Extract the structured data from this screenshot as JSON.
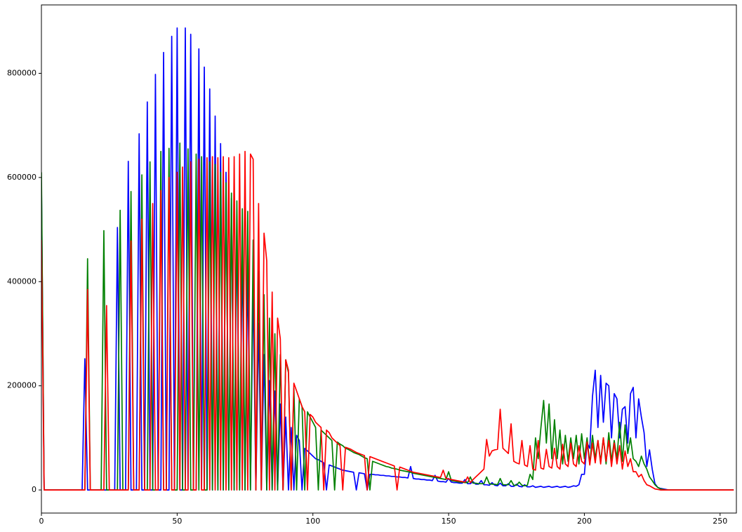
{
  "chart_data": {
    "type": "line",
    "xlim": [
      0,
      256
    ],
    "xticks": [
      0,
      50,
      100,
      150,
      200,
      250
    ],
    "ylim": [
      -44350,
      931350
    ],
    "yticks": [
      0,
      200000,
      400000,
      600000,
      800000
    ],
    "series": [
      {
        "color": "#0000ff",
        "values": [
          590000,
          0,
          0,
          0,
          0,
          0,
          0,
          0,
          0,
          0,
          0,
          0,
          0,
          0,
          0,
          0,
          252000,
          0,
          0,
          0,
          0,
          0,
          0,
          0,
          0,
          0,
          0,
          0,
          504000,
          0,
          0,
          0,
          631000,
          0,
          0,
          0,
          684000,
          0,
          0,
          745000,
          0,
          0,
          798000,
          0,
          0,
          840000,
          0,
          0,
          871000,
          0,
          887000,
          0,
          0,
          887000,
          0,
          875000,
          0,
          0,
          847000,
          0,
          812000,
          0,
          770000,
          0,
          718000,
          0,
          665000,
          0,
          610000,
          0,
          560000,
          0,
          510000,
          0,
          460000,
          0,
          430000,
          0,
          395000,
          0,
          320000,
          0,
          260000,
          0,
          210000,
          0,
          190000,
          0,
          165000,
          0,
          140000,
          0,
          120000,
          0,
          105000,
          95000,
          0,
          80000,
          75000,
          70000,
          65000,
          60000,
          58000,
          55000,
          52000,
          0,
          48000,
          46000,
          44000,
          42000,
          40000,
          38000,
          37000,
          36000,
          35000,
          34000,
          0,
          33000,
          32000,
          31000,
          0,
          30000,
          30000,
          29000,
          29000,
          28000,
          28000,
          27000,
          27000,
          26000,
          26000,
          25000,
          25000,
          24000,
          24000,
          23000,
          45000,
          22000,
          21000,
          21000,
          20000,
          20000,
          19000,
          19000,
          18000,
          28000,
          17000,
          16000,
          16000,
          15000,
          22000,
          15000,
          14000,
          14000,
          13000,
          13000,
          20000,
          12000,
          12000,
          16000,
          11000,
          11000,
          18000,
          10000,
          10000,
          9000,
          14000,
          9000,
          8000,
          13000,
          8000,
          8000,
          12000,
          7000,
          7000,
          11000,
          7000,
          6000,
          10000,
          6000,
          6000,
          8000,
          5000,
          6000,
          7000,
          5000,
          6000,
          7000,
          5000,
          6000,
          7000,
          5000,
          6000,
          7000,
          5000,
          6000,
          8000,
          7000,
          10000,
          30000,
          30000,
          90000,
          80000,
          180000,
          230000,
          120000,
          220000,
          130000,
          205000,
          200000,
          100000,
          185000,
          175000,
          100000,
          155000,
          160000,
          90000,
          185000,
          197000,
          100000,
          175000,
          140000,
          110000,
          45000,
          77000,
          40000,
          12000,
          5000,
          3000,
          2000,
          1000,
          0,
          0,
          0,
          0,
          0,
          0,
          0,
          0,
          0,
          0,
          0,
          0,
          0,
          0,
          0,
          0,
          0,
          0,
          0,
          0,
          0,
          0,
          0,
          0,
          0
        ]
      },
      {
        "color": "#008000",
        "values": [
          610000,
          0,
          0,
          0,
          0,
          0,
          0,
          0,
          0,
          0,
          0,
          0,
          0,
          0,
          0,
          0,
          0,
          444000,
          0,
          0,
          0,
          0,
          0,
          498000,
          0,
          0,
          0,
          0,
          0,
          537000,
          0,
          0,
          0,
          573000,
          0,
          0,
          0,
          605000,
          0,
          0,
          630000,
          0,
          0,
          0,
          650000,
          0,
          0,
          656000,
          0,
          0,
          0,
          666000,
          0,
          0,
          655000,
          0,
          0,
          645000,
          0,
          640000,
          0,
          0,
          630000,
          0,
          625000,
          0,
          610000,
          0,
          590000,
          0,
          570000,
          0,
          555000,
          0,
          540000,
          0,
          535000,
          0,
          480000,
          0,
          420000,
          0,
          375000,
          0,
          330000,
          0,
          300000,
          0,
          260000,
          0,
          250000,
          225000,
          0,
          195000,
          0,
          175000,
          160000,
          0,
          150000,
          140000,
          130000,
          120000,
          0,
          115000,
          110000,
          105000,
          100000,
          95000,
          0,
          92000,
          88000,
          85000,
          80000,
          78000,
          75000,
          72000,
          70000,
          68000,
          65000,
          62000,
          60000,
          0,
          55000,
          53000,
          51000,
          49000,
          47000,
          45000,
          44000,
          42000,
          41000,
          40000,
          38000,
          37000,
          36000,
          35000,
          34000,
          32000,
          31000,
          30000,
          29000,
          28000,
          27000,
          26000,
          25000,
          24000,
          23000,
          22000,
          21000,
          20000,
          35000,
          18000,
          17000,
          16000,
          15000,
          15000,
          14000,
          14000,
          25000,
          13000,
          13000,
          12000,
          12000,
          12000,
          25000,
          12000,
          11000,
          11000,
          10000,
          22000,
          10000,
          10000,
          10000,
          18000,
          9000,
          9000,
          15000,
          9000,
          8000,
          9000,
          30000,
          20000,
          100000,
          60000,
          120000,
          172000,
          90000,
          165000,
          60000,
          135000,
          60000,
          115000,
          50000,
          105000,
          55000,
          100000,
          60000,
          105000,
          50000,
          108000,
          60000,
          100000,
          50000,
          105000,
          60000,
          95000,
          55000,
          100000,
          50000,
          110000,
          55000,
          95000,
          60000,
          130000,
          55000,
          125000,
          70000,
          100000,
          60000,
          55000,
          45000,
          65000,
          50000,
          40000,
          25000,
          18000,
          10000,
          5000,
          2000,
          1000,
          0,
          0,
          0,
          0,
          0,
          0,
          0,
          0,
          0,
          0,
          0,
          0,
          0,
          0,
          0,
          0,
          0,
          0,
          0,
          0,
          0,
          0,
          0,
          0,
          0,
          0
        ]
      },
      {
        "color": "#ff0000",
        "values": [
          480000,
          0,
          0,
          0,
          0,
          0,
          0,
          0,
          0,
          0,
          0,
          0,
          0,
          0,
          0,
          0,
          0,
          385000,
          0,
          0,
          0,
          0,
          0,
          0,
          354000,
          0,
          0,
          0,
          0,
          0,
          0,
          0,
          0,
          478000,
          0,
          0,
          0,
          520000,
          0,
          0,
          0,
          550000,
          0,
          0,
          575000,
          0,
          0,
          600000,
          0,
          0,
          610000,
          0,
          620000,
          0,
          0,
          630000,
          0,
          0,
          635000,
          0,
          0,
          638000,
          0,
          640000,
          0,
          638000,
          0,
          640000,
          0,
          638000,
          0,
          640000,
          0,
          645000,
          0,
          650000,
          0,
          645000,
          635000,
          0,
          550000,
          0,
          493000,
          440000,
          0,
          380000,
          0,
          330000,
          290000,
          0,
          250000,
          230000,
          0,
          205000,
          190000,
          175000,
          160000,
          150000,
          0,
          145000,
          140000,
          130000,
          125000,
          120000,
          0,
          115000,
          110000,
          100000,
          95000,
          90000,
          85000,
          0,
          82000,
          80000,
          78000,
          75000,
          72000,
          70000,
          68000,
          66000,
          0,
          64000,
          62000,
          60000,
          58000,
          56000,
          54000,
          52000,
          50000,
          48000,
          46000,
          0,
          44000,
          42000,
          40000,
          38000,
          36000,
          34000,
          33000,
          32000,
          31000,
          30000,
          29000,
          28000,
          27000,
          26000,
          25000,
          24000,
          38000,
          22000,
          21000,
          20000,
          19000,
          18000,
          17000,
          16000,
          15000,
          25000,
          14000,
          20000,
          25000,
          30000,
          35000,
          40000,
          97000,
          65000,
          75000,
          77000,
          78000,
          155000,
          80000,
          75000,
          70000,
          127000,
          55000,
          52000,
          50000,
          95000,
          48000,
          45000,
          85000,
          40000,
          38000,
          95000,
          42000,
          40000,
          78000,
          45000,
          42000,
          80000,
          45000,
          40000,
          88000,
          50000,
          45000,
          90000,
          50000,
          45000,
          85000,
          55000,
          50000,
          92000,
          48000,
          90000,
          52000,
          95000,
          50000,
          100000,
          55000,
          95000,
          45000,
          90000,
          50000,
          85000,
          40000,
          75000,
          45000,
          60000,
          35000,
          35000,
          25000,
          30000,
          18000,
          10000,
          8000,
          5000,
          2000,
          1000,
          0,
          0,
          0,
          0,
          0,
          0,
          0,
          0,
          0,
          0,
          0,
          0,
          0,
          0,
          0,
          0,
          0,
          0,
          0,
          0,
          0,
          0,
          0,
          0,
          0,
          0,
          0,
          0
        ]
      }
    ]
  }
}
